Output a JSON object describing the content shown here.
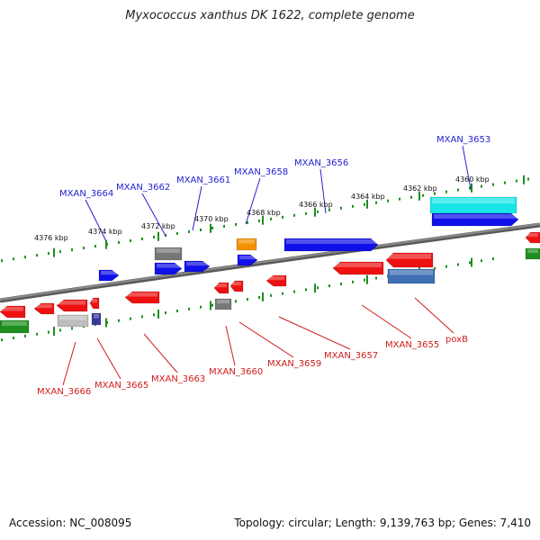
{
  "title": "Myxococcus xanthus DK 1622, complete genome",
  "accession": "Accession: NC_008095",
  "stats": "Topology: circular; Length: 9,139,763 bp; Genes: 7,410",
  "colors": {
    "blue": "#1010e8",
    "red": "#ee1111",
    "gray": "#777777",
    "light_gray": "#bdbdbd",
    "cyan": "#18e6e6",
    "orange": "#f39200",
    "green": "#1e8e1e",
    "navy": "#3a3a9a",
    "steel": "#3f6fb5",
    "backbone": "#8a8a8a",
    "ticks": "#1e8e1e"
  },
  "scale_labels": [
    "4376 kbp",
    "4374 kbp",
    "4372 kbp",
    "4370 kbp",
    "4368 kbp",
    "4366 kbp",
    "4364 kbp",
    "4362 kbp",
    "4360 kbp"
  ],
  "top_labels": [
    "MXAN_3664",
    "MXAN_3662",
    "MXAN_3661",
    "MXAN_3658",
    "MXAN_3656",
    "MXAN_3653"
  ],
  "bottom_labels": [
    "MXAN_3666",
    "MXAN_3665",
    "MXAN_3663",
    "MXAN_3660",
    "MXAN_3659",
    "MXAN_3657",
    "MXAN_3655",
    "poxB"
  ]
}
